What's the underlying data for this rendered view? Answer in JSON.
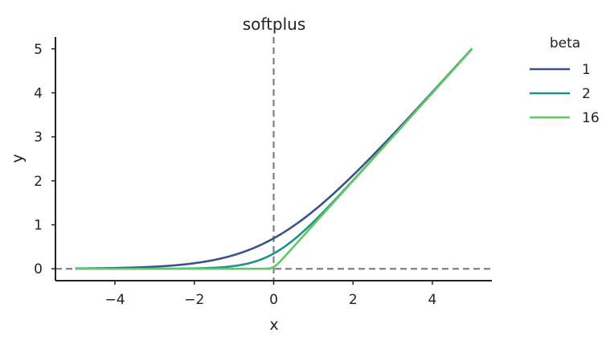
{
  "chart_data": {
    "type": "line",
    "title": "softplus",
    "xlabel": "x",
    "ylabel": "y",
    "xlim": [
      -5.5,
      5.5
    ],
    "ylim": [
      -0.27,
      5.27
    ],
    "xticks": [
      -4,
      -2,
      0,
      2,
      4
    ],
    "xtick_labels": [
      "−4",
      "−2",
      "0",
      "2",
      "4"
    ],
    "yticks": [
      0,
      1,
      2,
      3,
      4,
      5
    ],
    "ytick_labels": [
      "0",
      "1",
      "2",
      "3",
      "4",
      "5"
    ],
    "grid": false,
    "legend": {
      "title": "beta",
      "placement": "outside-right"
    },
    "reference_lines": [
      {
        "orientation": "vertical",
        "value": 0,
        "style": "dashed",
        "color": "#808080"
      },
      {
        "orientation": "horizontal",
        "value": 0,
        "style": "dashed",
        "color": "#808080"
      }
    ],
    "function": "y = log(1 + exp(beta * x)) / beta",
    "x": [
      -5,
      -4.5,
      -4,
      -3.5,
      -3,
      -2.5,
      -2,
      -1.5,
      -1,
      -0.5,
      0,
      0.5,
      1,
      1.5,
      2,
      2.5,
      3,
      3.5,
      4,
      4.5,
      5
    ],
    "series": [
      {
        "name": "1",
        "beta": 1,
        "color": "#3b528b",
        "values": [
          0.0067,
          0.011,
          0.0181,
          0.0298,
          0.0486,
          0.0789,
          0.1269,
          0.2014,
          0.3133,
          0.4741,
          0.6931,
          0.9741,
          1.3133,
          1.7014,
          2.1269,
          2.5789,
          3.0486,
          3.5298,
          4.0181,
          4.511,
          5.0067
        ]
      },
      {
        "name": "2",
        "beta": 2,
        "color": "#21918c",
        "values": [
          0.0,
          0.0001,
          0.0002,
          0.0005,
          0.0012,
          0.0034,
          0.0091,
          0.0247,
          0.0635,
          0.1566,
          0.3466,
          0.6566,
          1.0635,
          1.5247,
          2.0091,
          2.5034,
          3.0012,
          3.5005,
          4.0002,
          4.5001,
          5.0
        ]
      },
      {
        "name": "16",
        "beta": 16,
        "color": "#5ec962",
        "values": [
          0.0,
          0.0,
          0.0,
          0.0,
          0.0,
          0.0,
          0.0,
          0.0,
          0.0,
          0.0002,
          0.0433,
          0.5002,
          1.0,
          1.5,
          2.0,
          2.5,
          3.0,
          3.5,
          4.0,
          4.5,
          5.0
        ]
      }
    ]
  }
}
